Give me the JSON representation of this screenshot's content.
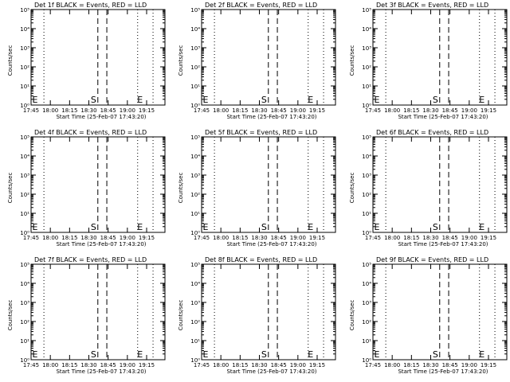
{
  "figure": {
    "background": "#ffffff",
    "foreground": "#000000"
  },
  "chart_data": [
    {
      "type": "line",
      "title": "Det 1f BLACK = Events, RED = LLD",
      "xlabel": "Start Time (25-Feb-07 17:43:20)",
      "ylabel": "Counts/sec",
      "x_ticks": [
        "17:45",
        "18:00",
        "18:15",
        "18:30",
        "18:45",
        "19:00",
        "19:15"
      ],
      "y_scale": "log",
      "ylim": [
        1,
        100000
      ],
      "y_tick_exponents": [
        0,
        1,
        2,
        3,
        4,
        5
      ],
      "markers": {
        "start": "S",
        "end": "E",
        "start_edge": "E",
        "dashed_times": [
          "18:37",
          "18:44"
        ],
        "dotted_times": [
          "17:55",
          "19:08",
          "19:20"
        ]
      },
      "series": []
    },
    {
      "type": "line",
      "title": "Det 2f BLACK = Events, RED = LLD",
      "xlabel": "Start Time (25-Feb-07 17:43:20)",
      "ylabel": "Counts/sec",
      "x_ticks": [
        "17:45",
        "18:00",
        "18:15",
        "18:30",
        "18:45",
        "19:00",
        "19:15"
      ],
      "y_scale": "log",
      "ylim": [
        1,
        100000
      ],
      "y_tick_exponents": [
        0,
        1,
        2,
        3,
        4,
        5
      ],
      "markers": {
        "start": "S",
        "end": "E",
        "start_edge": "E",
        "dashed_times": [
          "18:37",
          "18:44"
        ],
        "dotted_times": [
          "17:55",
          "19:08",
          "19:20"
        ]
      },
      "series": []
    },
    {
      "type": "line",
      "title": "Det 3f BLACK = Events, RED = LLD",
      "xlabel": "Start Time (25-Feb-07 17:43:20)",
      "ylabel": "Counts/sec",
      "x_ticks": [
        "17:45",
        "18:00",
        "18:15",
        "18:30",
        "18:45",
        "19:00",
        "19:15"
      ],
      "y_scale": "log",
      "ylim": [
        1,
        100000
      ],
      "y_tick_exponents": [
        0,
        1,
        2,
        3,
        4,
        5
      ],
      "markers": {
        "start": "S",
        "end": "E",
        "start_edge": "E",
        "dashed_times": [
          "18:37",
          "18:44"
        ],
        "dotted_times": [
          "17:55",
          "19:08",
          "19:20"
        ]
      },
      "series": []
    },
    {
      "type": "line",
      "title": "Det 4f BLACK = Events, RED = LLD",
      "xlabel": "Start Time (25-Feb-07 17:43:20)",
      "ylabel": "Counts/sec",
      "x_ticks": [
        "17:45",
        "18:00",
        "18:15",
        "18:30",
        "18:45",
        "19:00",
        "19:15"
      ],
      "y_scale": "log",
      "ylim": [
        1,
        100000
      ],
      "y_tick_exponents": [
        0,
        1,
        2,
        3,
        4,
        5
      ],
      "markers": {
        "start": "S",
        "end": "E",
        "start_edge": "E",
        "dashed_times": [
          "18:37",
          "18:44"
        ],
        "dotted_times": [
          "17:55",
          "19:08",
          "19:20"
        ]
      },
      "series": []
    },
    {
      "type": "line",
      "title": "Det 5f BLACK = Events, RED = LLD",
      "xlabel": "Start Time (25-Feb-07 17:43:20)",
      "ylabel": "Counts/sec",
      "x_ticks": [
        "17:45",
        "18:00",
        "18:15",
        "18:30",
        "18:45",
        "19:00",
        "19:15"
      ],
      "y_scale": "log",
      "ylim": [
        1,
        100000
      ],
      "y_tick_exponents": [
        0,
        1,
        2,
        3,
        4,
        5
      ],
      "markers": {
        "start": "S",
        "end": "E",
        "start_edge": "E",
        "dashed_times": [
          "18:37",
          "18:44"
        ],
        "dotted_times": [
          "17:55",
          "19:08",
          "19:20"
        ]
      },
      "series": []
    },
    {
      "type": "line",
      "title": "Det 6f BLACK = Events, RED = LLD",
      "xlabel": "Start Time (25-Feb-07 17:43:20)",
      "ylabel": "Counts/sec",
      "x_ticks": [
        "17:45",
        "18:00",
        "18:15",
        "18:30",
        "18:45",
        "19:00",
        "19:15"
      ],
      "y_scale": "log",
      "ylim": [
        1,
        100000
      ],
      "y_tick_exponents": [
        0,
        1,
        2,
        3,
        4,
        5
      ],
      "markers": {
        "start": "S",
        "end": "E",
        "start_edge": "E",
        "dashed_times": [
          "18:37",
          "18:44"
        ],
        "dotted_times": [
          "17:55",
          "19:08",
          "19:20"
        ]
      },
      "series": []
    },
    {
      "type": "line",
      "title": "Det 7f BLACK = Events, RED = LLD",
      "xlabel": "Start Time (25-Feb-07 17:43:20)",
      "ylabel": "Counts/sec",
      "x_ticks": [
        "17:45",
        "18:00",
        "18:15",
        "18:30",
        "18:45",
        "19:00",
        "19:15"
      ],
      "y_scale": "log",
      "ylim": [
        1,
        100000
      ],
      "y_tick_exponents": [
        0,
        1,
        2,
        3,
        4,
        5
      ],
      "markers": {
        "start": "S",
        "end": "E",
        "start_edge": "E",
        "dashed_times": [
          "18:37",
          "18:44"
        ],
        "dotted_times": [
          "17:55",
          "19:08",
          "19:20"
        ]
      },
      "series": []
    },
    {
      "type": "line",
      "title": "Det 8f BLACK = Events, RED = LLD",
      "xlabel": "Start Time (25-Feb-07 17:43:20)",
      "ylabel": "Counts/sec",
      "x_ticks": [
        "17:45",
        "18:00",
        "18:15",
        "18:30",
        "18:45",
        "19:00",
        "19:15"
      ],
      "y_scale": "log",
      "ylim": [
        1,
        100000
      ],
      "y_tick_exponents": [
        0,
        1,
        2,
        3,
        4,
        5
      ],
      "markers": {
        "start": "S",
        "end": "E",
        "start_edge": "E",
        "dashed_times": [
          "18:37",
          "18:44"
        ],
        "dotted_times": [
          "17:55",
          "19:08",
          "19:20"
        ]
      },
      "series": []
    },
    {
      "type": "line",
      "title": "Det 9f BLACK = Events, RED = LLD",
      "xlabel": "Start Time (25-Feb-07 17:43:20)",
      "ylabel": "Counts/sec",
      "x_ticks": [
        "17:45",
        "18:00",
        "18:15",
        "18:30",
        "18:45",
        "19:00",
        "19:15"
      ],
      "y_scale": "log",
      "ylim": [
        1,
        100000
      ],
      "y_tick_exponents": [
        0,
        1,
        2,
        3,
        4,
        5
      ],
      "markers": {
        "start": "S",
        "end": "E",
        "start_edge": "E",
        "dashed_times": [
          "18:37",
          "18:44"
        ],
        "dotted_times": [
          "17:55",
          "19:08",
          "19:20"
        ]
      },
      "series": []
    }
  ]
}
